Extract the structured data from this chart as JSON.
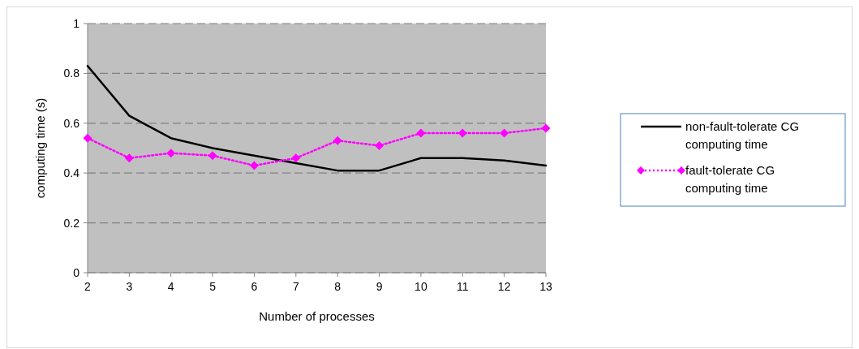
{
  "chart_data": {
    "type": "line",
    "xlabel": "Number of processes",
    "ylabel": "computing time (s)",
    "x": [
      2,
      3,
      4,
      5,
      6,
      7,
      8,
      9,
      10,
      11,
      12,
      13
    ],
    "xlim": [
      2,
      13
    ],
    "xticks": [
      2,
      3,
      4,
      5,
      6,
      7,
      8,
      9,
      10,
      11,
      12,
      13
    ],
    "ylim": [
      0,
      1
    ],
    "yticks": [
      0,
      0.2,
      0.4,
      0.6,
      0.8,
      1
    ],
    "grid": "y",
    "legend": "right",
    "series": [
      {
        "name": "non-fault-tolerate CG computing time",
        "color": "#000000",
        "marker": "none",
        "line_style": "solid",
        "values": [
          0.83,
          0.63,
          0.54,
          0.5,
          0.47,
          0.44,
          0.41,
          0.41,
          0.46,
          0.46,
          0.45,
          0.43
        ]
      },
      {
        "name": "fault-tolerate CG computing time",
        "color": "#ff00ff",
        "marker": "diamond",
        "line_style": "dotted",
        "values": [
          0.54,
          0.46,
          0.48,
          0.47,
          0.43,
          0.46,
          0.53,
          0.51,
          0.56,
          0.56,
          0.56,
          0.58
        ]
      }
    ]
  }
}
